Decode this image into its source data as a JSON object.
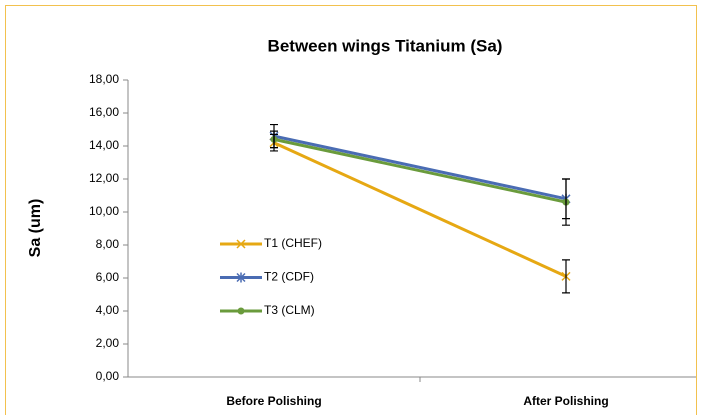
{
  "chart_data": {
    "type": "line",
    "title": "Between wings Titanium (Sa)",
    "y_label": "Sa (um)",
    "categories": [
      "Before Polishing",
      "After Polishing"
    ],
    "series": [
      {
        "name": "T1 (CHEF)",
        "color": "#e6a813",
        "marker": "x",
        "values": [
          14.2,
          6.1
        ],
        "errors": [
          0.5,
          1.0
        ]
      },
      {
        "name": "T2 (CDF)",
        "color": "#4a6cb3",
        "marker": "star",
        "values": [
          14.6,
          10.8
        ],
        "errors": [
          0.7,
          1.2
        ]
      },
      {
        "name": "T3 (CLM)",
        "color": "#6a9b3c",
        "marker": "circle",
        "values": [
          14.4,
          10.6
        ],
        "errors": [
          0.5,
          1.4
        ]
      }
    ],
    "ylim": [
      0,
      18
    ],
    "yticks": [
      {
        "value": 0,
        "label": "0,00"
      },
      {
        "value": 2,
        "label": "2,00"
      },
      {
        "value": 4,
        "label": "4,00"
      },
      {
        "value": 6,
        "label": "6,00"
      },
      {
        "value": 8,
        "label": "8,00"
      },
      {
        "value": 10,
        "label": "10,00"
      },
      {
        "value": 12,
        "label": "12,00"
      },
      {
        "value": 14,
        "label": "14,00"
      },
      {
        "value": 16,
        "label": "16,00"
      },
      {
        "value": 18,
        "label": "18,00"
      }
    ],
    "legend": "left",
    "error_bars": true
  }
}
